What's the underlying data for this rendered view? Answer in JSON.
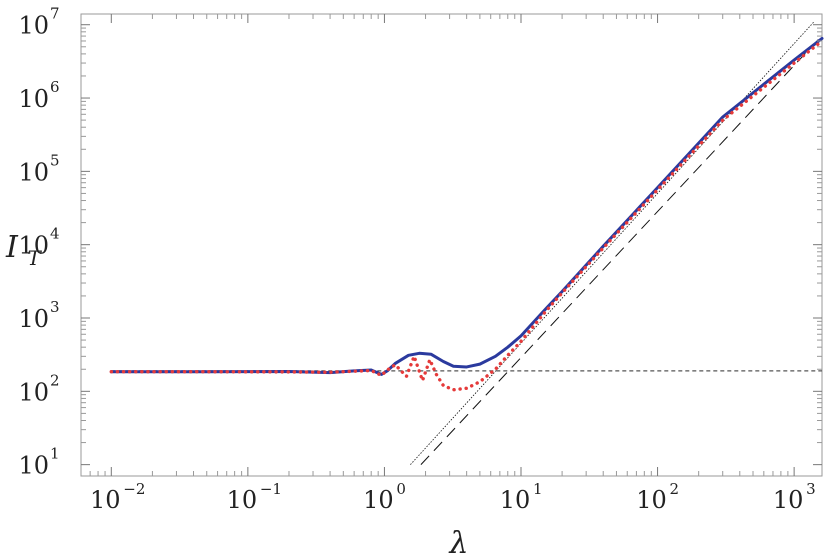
{
  "chart_data": {
    "type": "line",
    "xscale": "log",
    "yscale": "log",
    "xlabel": "λ",
    "ylabel_main": "I",
    "ylabel_sub": "T",
    "xlim": [
      0.006,
      1600
    ],
    "ylim": [
      7,
      14000000
    ],
    "x_ticks": [
      {
        "base": "10",
        "exp": "−2",
        "value": 0.01
      },
      {
        "base": "10",
        "exp": "−1",
        "value": 0.1
      },
      {
        "base": "10",
        "exp": "0",
        "value": 1
      },
      {
        "base": "10",
        "exp": "1",
        "value": 10
      },
      {
        "base": "10",
        "exp": "2",
        "value": 100
      },
      {
        "base": "10",
        "exp": "3",
        "value": 1000
      }
    ],
    "y_ticks": [
      {
        "base": "10",
        "exp": "1",
        "value": 10
      },
      {
        "base": "10",
        "exp": "2",
        "value": 100
      },
      {
        "base": "10",
        "exp": "3",
        "value": 1000
      },
      {
        "base": "10",
        "exp": "4",
        "value": 10000
      },
      {
        "base": "10",
        "exp": "5",
        "value": 100000
      },
      {
        "base": "10",
        "exp": "6",
        "value": 1000000
      },
      {
        "base": "10",
        "exp": "7",
        "value": 10000000
      }
    ],
    "grid": false,
    "series": [
      {
        "style": "solid",
        "color": "#2b3a9e",
        "x": [
          0.01,
          0.05,
          0.2,
          0.4,
          0.6,
          0.8,
          0.95,
          1.05,
          1.2,
          1.5,
          1.8,
          2.2,
          2.7,
          3.2,
          4,
          5,
          6.5,
          8,
          10,
          15,
          20,
          40,
          100,
          300,
          1000,
          1600
        ],
        "y": [
          185,
          185,
          186,
          180,
          190,
          195,
          170,
          190,
          240,
          310,
          330,
          320,
          255,
          220,
          215,
          235,
          300,
          400,
          570,
          1300,
          2300,
          9500,
          60000,
          550000,
          3300000,
          6500000
        ]
      },
      {
        "style": "dotted",
        "color": "#e53a3a",
        "x": [
          0.01,
          0.05,
          0.2,
          0.4,
          0.6,
          0.8,
          0.95,
          1.05,
          1.2,
          1.45,
          1.65,
          1.9,
          2.15,
          2.4,
          2.7,
          3.2,
          4,
          5,
          6.5,
          8,
          10,
          15,
          20,
          40,
          100,
          300,
          1000,
          1600
        ],
        "y": [
          185,
          185,
          184,
          182,
          188,
          192,
          165,
          195,
          230,
          160,
          300,
          140,
          270,
          170,
          120,
          105,
          110,
          135,
          200,
          310,
          480,
          1200,
          2200,
          9000,
          56000,
          500000,
          3000000,
          6000000
        ]
      },
      {
        "style": "dashed",
        "color": "#555555",
        "x": [
          0.01,
          1600
        ],
        "y": [
          190,
          190
        ]
      },
      {
        "style": "long-dash",
        "color": "#111111",
        "x": [
          1.85,
          1600
        ],
        "y": [
          10,
          7100000
        ]
      },
      {
        "style": "thin-solid",
        "color": "#111111",
        "x": [
          1.55,
          1400
        ],
        "y": [
          10,
          11000000
        ]
      }
    ]
  }
}
